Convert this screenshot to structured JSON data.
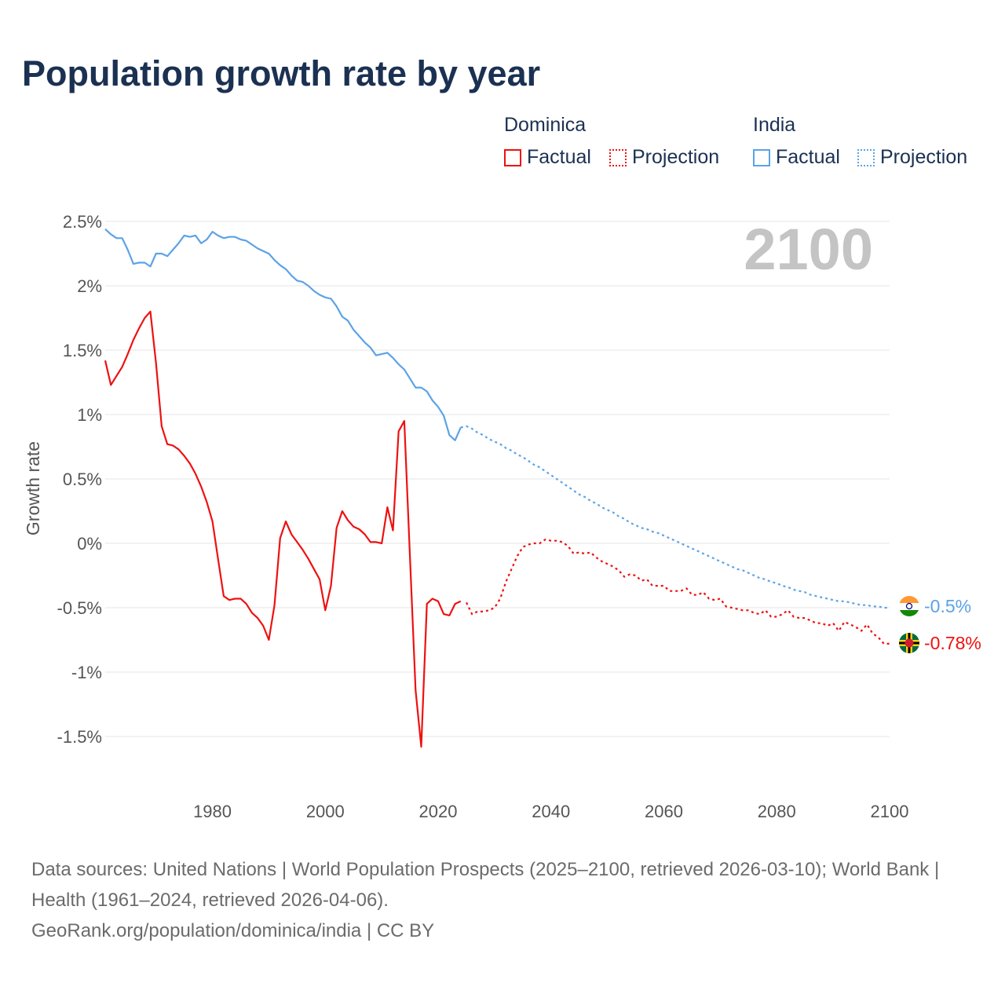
{
  "title": "Population growth rate by year",
  "legend": {
    "groups": [
      {
        "name": "Dominica",
        "color": "#ee1111",
        "factual_label": "Factual",
        "projection_label": "Projection"
      },
      {
        "name": "India",
        "color": "#5ba3e6",
        "factual_label": "Factual",
        "projection_label": "Projection"
      }
    ]
  },
  "year_display": "2100",
  "end_labels": {
    "india": "-0.5%",
    "dominica": "-0.78%"
  },
  "footer": {
    "sources": "Data sources: United Nations | World Population Prospects (2025–2100, retrieved 2026-03-10); World Bank | Health (1961–2024, retrieved 2026-04-06).",
    "credit": "GeoRank.org/population/dominica/india | CC BY"
  },
  "chart_data": {
    "type": "line",
    "title": "Population growth rate by year",
    "xlabel": "",
    "ylabel": "Growth rate",
    "xlim": [
      1961,
      2100
    ],
    "ylim": [
      -1.8,
      2.6
    ],
    "grid": true,
    "x_ticks": [
      1980,
      2000,
      2020,
      2040,
      2060,
      2080,
      2100
    ],
    "x_tick_labels": [
      "1980",
      "2000",
      "2020",
      "2040",
      "2060",
      "2080",
      "2100"
    ],
    "y_ticks": [
      2.5,
      2,
      1.5,
      1,
      0.5,
      0,
      -0.5,
      -1,
      -1.5
    ],
    "y_tick_labels": [
      "2.5%",
      "2%",
      "1.5%",
      "1%",
      "0.5%",
      "0%",
      "-0.5%",
      "-1%",
      "-1.5%"
    ],
    "legend_position": "top-right",
    "series": [
      {
        "name": "Dominica Factual",
        "color": "#ee1111",
        "dashed": false,
        "x_start": 1961,
        "step": 1,
        "values": [
          1.42,
          1.23,
          1.3,
          1.37,
          1.47,
          1.58,
          1.67,
          1.75,
          1.8,
          1.4,
          0.91,
          0.77,
          0.76,
          0.73,
          0.68,
          0.62,
          0.54,
          0.44,
          0.32,
          0.17,
          -0.12,
          -0.41,
          -0.44,
          -0.43,
          -0.43,
          -0.47,
          -0.54,
          -0.58,
          -0.64,
          -0.75,
          -0.48,
          0.04,
          0.17,
          0.07,
          0.01,
          -0.05,
          -0.12,
          -0.2,
          -0.28,
          -0.52,
          -0.33,
          0.12,
          0.25,
          0.18,
          0.13,
          0.11,
          0.07,
          0.01,
          0.01,
          0.0,
          0.28,
          0.1,
          0.87,
          0.95,
          -0.1,
          -1.14,
          -1.58,
          -0.47,
          -0.43,
          -0.45,
          -0.55,
          -0.56,
          -0.47,
          -0.45
        ]
      },
      {
        "name": "Dominica Projection",
        "color": "#ee1111",
        "dashed": true,
        "x_start": 2025,
        "step": 1,
        "values": [
          -0.46,
          -0.55,
          -0.53,
          -0.53,
          -0.52,
          -0.5,
          -0.43,
          -0.3,
          -0.2,
          -0.1,
          -0.03,
          -0.01,
          0.0,
          0.0,
          0.03,
          0.02,
          0.02,
          0.01,
          -0.02,
          -0.08,
          -0.07,
          -0.08,
          -0.07,
          -0.11,
          -0.14,
          -0.16,
          -0.18,
          -0.21,
          -0.26,
          -0.24,
          -0.25,
          -0.29,
          -0.28,
          -0.33,
          -0.33,
          -0.33,
          -0.37,
          -0.37,
          -0.37,
          -0.35,
          -0.4,
          -0.4,
          -0.38,
          -0.43,
          -0.44,
          -0.43,
          -0.49,
          -0.5,
          -0.51,
          -0.52,
          -0.52,
          -0.54,
          -0.55,
          -0.52,
          -0.57,
          -0.57,
          -0.55,
          -0.52,
          -0.57,
          -0.58,
          -0.58,
          -0.6,
          -0.62,
          -0.62,
          -0.64,
          -0.62,
          -0.68,
          -0.61,
          -0.63,
          -0.65,
          -0.68,
          -0.63,
          -0.7,
          -0.73,
          -0.78,
          -0.78
        ]
      },
      {
        "name": "India Factual",
        "color": "#5ba3e6",
        "dashed": false,
        "x_start": 1961,
        "step": 1,
        "values": [
          2.44,
          2.4,
          2.37,
          2.37,
          2.28,
          2.17,
          2.18,
          2.18,
          2.15,
          2.25,
          2.25,
          2.23,
          2.28,
          2.33,
          2.39,
          2.38,
          2.39,
          2.33,
          2.36,
          2.42,
          2.39,
          2.37,
          2.38,
          2.38,
          2.36,
          2.35,
          2.32,
          2.29,
          2.27,
          2.25,
          2.2,
          2.16,
          2.13,
          2.08,
          2.04,
          2.03,
          2.0,
          1.96,
          1.93,
          1.91,
          1.9,
          1.84,
          1.76,
          1.73,
          1.66,
          1.61,
          1.56,
          1.52,
          1.46,
          1.47,
          1.48,
          1.44,
          1.39,
          1.35,
          1.28,
          1.21,
          1.21,
          1.18,
          1.11,
          1.06,
          0.99,
          0.84,
          0.8,
          0.9
        ]
      },
      {
        "name": "India Projection",
        "color": "#5ba3e6",
        "dashed": true,
        "x_start": 2024,
        "step": 1,
        "values": [
          0.9,
          0.91,
          0.89,
          0.86,
          0.84,
          0.81,
          0.79,
          0.77,
          0.74,
          0.72,
          0.69,
          0.67,
          0.64,
          0.61,
          0.59,
          0.56,
          0.53,
          0.5,
          0.47,
          0.44,
          0.41,
          0.38,
          0.36,
          0.33,
          0.31,
          0.28,
          0.26,
          0.24,
          0.21,
          0.19,
          0.16,
          0.14,
          0.12,
          0.11,
          0.09,
          0.08,
          0.06,
          0.04,
          0.02,
          0.0,
          -0.02,
          -0.04,
          -0.06,
          -0.08,
          -0.1,
          -0.12,
          -0.14,
          -0.16,
          -0.18,
          -0.2,
          -0.21,
          -0.23,
          -0.25,
          -0.27,
          -0.28,
          -0.3,
          -0.31,
          -0.33,
          -0.34,
          -0.36,
          -0.37,
          -0.38,
          -0.4,
          -0.41,
          -0.42,
          -0.43,
          -0.44,
          -0.45,
          -0.45,
          -0.46,
          -0.47,
          -0.48,
          -0.48,
          -0.49,
          -0.49,
          -0.5,
          -0.5
        ]
      }
    ]
  }
}
